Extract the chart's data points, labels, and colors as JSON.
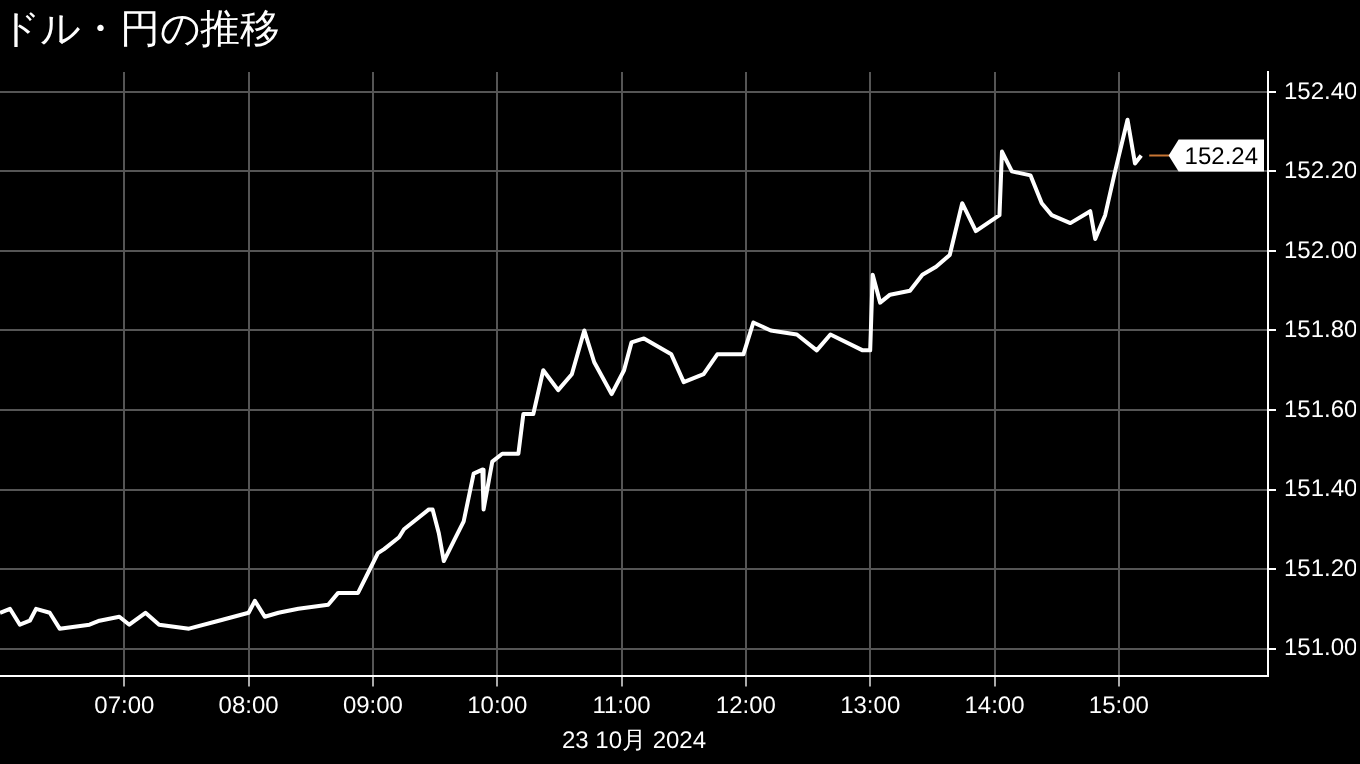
{
  "chart_data": {
    "type": "line",
    "title": "ドル・円の推移",
    "xlabel": "23 10月 2024",
    "x": [
      6.0,
      6.08,
      6.16,
      6.24,
      6.29,
      6.4,
      6.48,
      6.72,
      6.8,
      6.96,
      7.04,
      7.17,
      7.28,
      7.52,
      7.76,
      7.88,
      8.0,
      8.05,
      8.13,
      8.24,
      8.4,
      8.64,
      8.72,
      8.88,
      8.96,
      9.04,
      9.09,
      9.21,
      9.25,
      9.45,
      9.48,
      9.53,
      9.57,
      9.65,
      9.73,
      9.81,
      9.88,
      9.89,
      9.96,
      10.04,
      10.17,
      10.21,
      10.29,
      10.37,
      10.49,
      10.6,
      10.7,
      10.78,
      10.92,
      11.02,
      11.08,
      11.18,
      11.4,
      11.5,
      11.66,
      11.77,
      11.88,
      11.98,
      12.06,
      12.2,
      12.41,
      12.57,
      12.68,
      12.94,
      13.0,
      13.02,
      13.08,
      13.16,
      13.32,
      13.42,
      13.53,
      13.64,
      13.74,
      13.85,
      14.04,
      14.06,
      14.14,
      14.29,
      14.38,
      14.46,
      14.61,
      14.77,
      14.81,
      14.89,
      14.97,
      15.07,
      15.13,
      15.18
    ],
    "series": [
      {
        "color": "#ffffff",
        "values": [
          151.09,
          151.1,
          151.06,
          151.07,
          151.1,
          151.09,
          151.05,
          151.06,
          151.07,
          151.08,
          151.06,
          151.09,
          151.06,
          151.05,
          151.07,
          151.08,
          151.09,
          151.12,
          151.08,
          151.09,
          151.1,
          151.11,
          151.14,
          151.14,
          151.19,
          151.24,
          151.25,
          151.28,
          151.3,
          151.35,
          151.35,
          151.29,
          151.22,
          151.27,
          151.32,
          151.44,
          151.45,
          151.35,
          151.47,
          151.49,
          151.49,
          151.59,
          151.59,
          151.7,
          151.65,
          151.69,
          151.8,
          151.72,
          151.64,
          151.7,
          151.77,
          151.78,
          151.74,
          151.67,
          151.69,
          151.74,
          151.74,
          151.74,
          151.82,
          151.8,
          151.79,
          151.75,
          151.79,
          151.75,
          151.75,
          151.94,
          151.87,
          151.89,
          151.9,
          151.94,
          151.96,
          151.99,
          152.12,
          152.05,
          152.09,
          152.25,
          152.2,
          152.19,
          152.12,
          152.09,
          152.07,
          152.1,
          152.03,
          152.09,
          152.2,
          152.33,
          152.22,
          152.24
        ]
      }
    ],
    "xlim": [
      6.0,
      16.2
    ],
    "xticks": [
      {
        "value": 7,
        "label": "07:00"
      },
      {
        "value": 8,
        "label": "08:00"
      },
      {
        "value": 9,
        "label": "09:00"
      },
      {
        "value": 10,
        "label": "10:00"
      },
      {
        "value": 11,
        "label": "11:00"
      },
      {
        "value": 12,
        "label": "12:00"
      },
      {
        "value": 13,
        "label": "13:00"
      },
      {
        "value": 14,
        "label": "14:00"
      },
      {
        "value": 15,
        "label": "15:00"
      }
    ],
    "ylim": [
      150.93,
      152.45
    ],
    "yticks": [
      {
        "value": 151,
        "label": "151.00"
      },
      {
        "value": 151.2,
        "label": "151.20"
      },
      {
        "value": 151.4,
        "label": "151.40"
      },
      {
        "value": 151.6,
        "label": "151.60"
      },
      {
        "value": 151.8,
        "label": "151.80"
      },
      {
        "value": 152,
        "label": "152.00"
      },
      {
        "value": 152.2,
        "label": "152.20"
      },
      {
        "value": 152.4,
        "label": "152.40"
      }
    ],
    "ref_lines": [
      {
        "axis": "y",
        "value": 152.24,
        "label": "152.24",
        "color": "#c87533"
      }
    ],
    "grid": true,
    "legend": false,
    "marker": "none",
    "line_style": "solid"
  }
}
